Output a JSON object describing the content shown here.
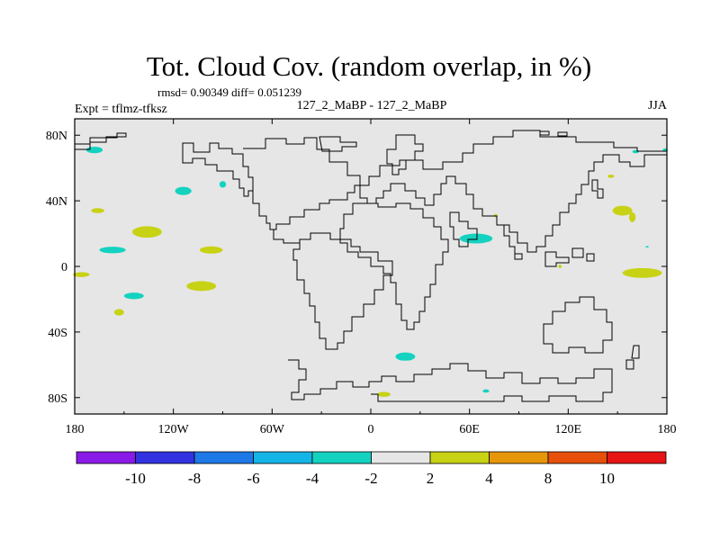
{
  "chart_data": {
    "type": "heatmap",
    "title": "Tot. Cloud Cov. (random overlap, in %)",
    "stats": "rmsd= 0.90349 diff= 0.051239",
    "left_label": "Expt = tflmz-tfksz",
    "center_label": "127_2_MaBP - 127_2_MaBP",
    "right_label": "JJA",
    "xlim": [
      -180,
      180
    ],
    "ylim": [
      -90,
      90
    ],
    "x_ticks": [
      {
        "value": -180,
        "label": "180"
      },
      {
        "value": -120,
        "label": "120W"
      },
      {
        "value": -60,
        "label": "60W"
      },
      {
        "value": 0,
        "label": "0"
      },
      {
        "value": 60,
        "label": "60E"
      },
      {
        "value": 120,
        "label": "120E"
      },
      {
        "value": 180,
        "label": "180"
      }
    ],
    "y_ticks": [
      {
        "value": 80,
        "label": "80N"
      },
      {
        "value": 40,
        "label": "40N"
      },
      {
        "value": 0,
        "label": "0"
      },
      {
        "value": -40,
        "label": "40S"
      },
      {
        "value": -80,
        "label": "80S"
      }
    ],
    "colorbar": {
      "levels": [
        "-10",
        "-8",
        "-6",
        "-4",
        "-2",
        "2",
        "4",
        "8",
        "10"
      ],
      "colors": [
        "#8a1ae6",
        "#3232e0",
        "#1e78e6",
        "#14b4e6",
        "#14d2c0",
        "#e6e6e6",
        "#c8d214",
        "#e6960a",
        "#e6500a",
        "#e61414"
      ]
    },
    "anomalies": [
      {
        "lon": -168,
        "lat": 71,
        "rx": 5,
        "ry": 2,
        "level": "-4 to -2"
      },
      {
        "lon": -114,
        "lat": 46,
        "rx": 5,
        "ry": 2.5,
        "level": "-4 to -2"
      },
      {
        "lon": -166,
        "lat": 34,
        "rx": 4,
        "ry": 1.5,
        "level": "2 to 4"
      },
      {
        "lon": -136,
        "lat": 21,
        "rx": 9,
        "ry": 3.5,
        "level": "2 to 4"
      },
      {
        "lon": -157,
        "lat": 10,
        "rx": 8,
        "ry": 2,
        "level": "-4 to -2"
      },
      {
        "lon": -97,
        "lat": 10,
        "rx": 7,
        "ry": 2.2,
        "level": "2 to 4"
      },
      {
        "lon": -176,
        "lat": -5,
        "rx": 5,
        "ry": 1.5,
        "level": "2 to 4"
      },
      {
        "lon": -103,
        "lat": -12,
        "rx": 9,
        "ry": 3,
        "level": "2 to 4"
      },
      {
        "lon": -144,
        "lat": -18,
        "rx": 6,
        "ry": 2,
        "level": "-4 to -2"
      },
      {
        "lon": -153,
        "lat": -28,
        "rx": 3,
        "ry": 2,
        "level": "2 to 4"
      },
      {
        "lon": -90,
        "lat": 50,
        "rx": 2,
        "ry": 2,
        "level": "-4 to -2"
      },
      {
        "lon": 64,
        "lat": 17,
        "rx": 10,
        "ry": 3,
        "level": "-4 to -2"
      },
      {
        "lon": 153,
        "lat": 34,
        "rx": 6,
        "ry": 3,
        "level": "2 to 4"
      },
      {
        "lon": 159,
        "lat": 30,
        "rx": 2,
        "ry": 3,
        "level": "2 to 4"
      },
      {
        "lon": 165,
        "lat": -4,
        "rx": 12,
        "ry": 3,
        "level": "2 to 4"
      },
      {
        "lon": 146,
        "lat": 55,
        "rx": 2,
        "ry": 1,
        "level": "2 to 4"
      },
      {
        "lon": 161,
        "lat": 70,
        "rx": 2,
        "ry": 1,
        "level": "-4 to -2"
      },
      {
        "lon": 179,
        "lat": 71,
        "rx": 1.5,
        "ry": 1,
        "level": "-4 to -2"
      },
      {
        "lon": 21,
        "lat": -55,
        "rx": 6,
        "ry": 2.5,
        "level": "-4 to -2"
      },
      {
        "lon": 8,
        "lat": -78,
        "rx": 4,
        "ry": 1.5,
        "level": "2 to 4"
      },
      {
        "lon": 70,
        "lat": -76,
        "rx": 2,
        "ry": 1,
        "level": "-4 to -2"
      },
      {
        "lon": 76,
        "lat": 31,
        "rx": 1,
        "ry": 1,
        "level": "2 to 4"
      },
      {
        "lon": 115,
        "lat": 0,
        "rx": 1,
        "ry": 1,
        "level": "2 to 4"
      },
      {
        "lon": 168,
        "lat": 12,
        "rx": 1,
        "ry": 0.5,
        "level": "-4 to -2"
      }
    ]
  }
}
